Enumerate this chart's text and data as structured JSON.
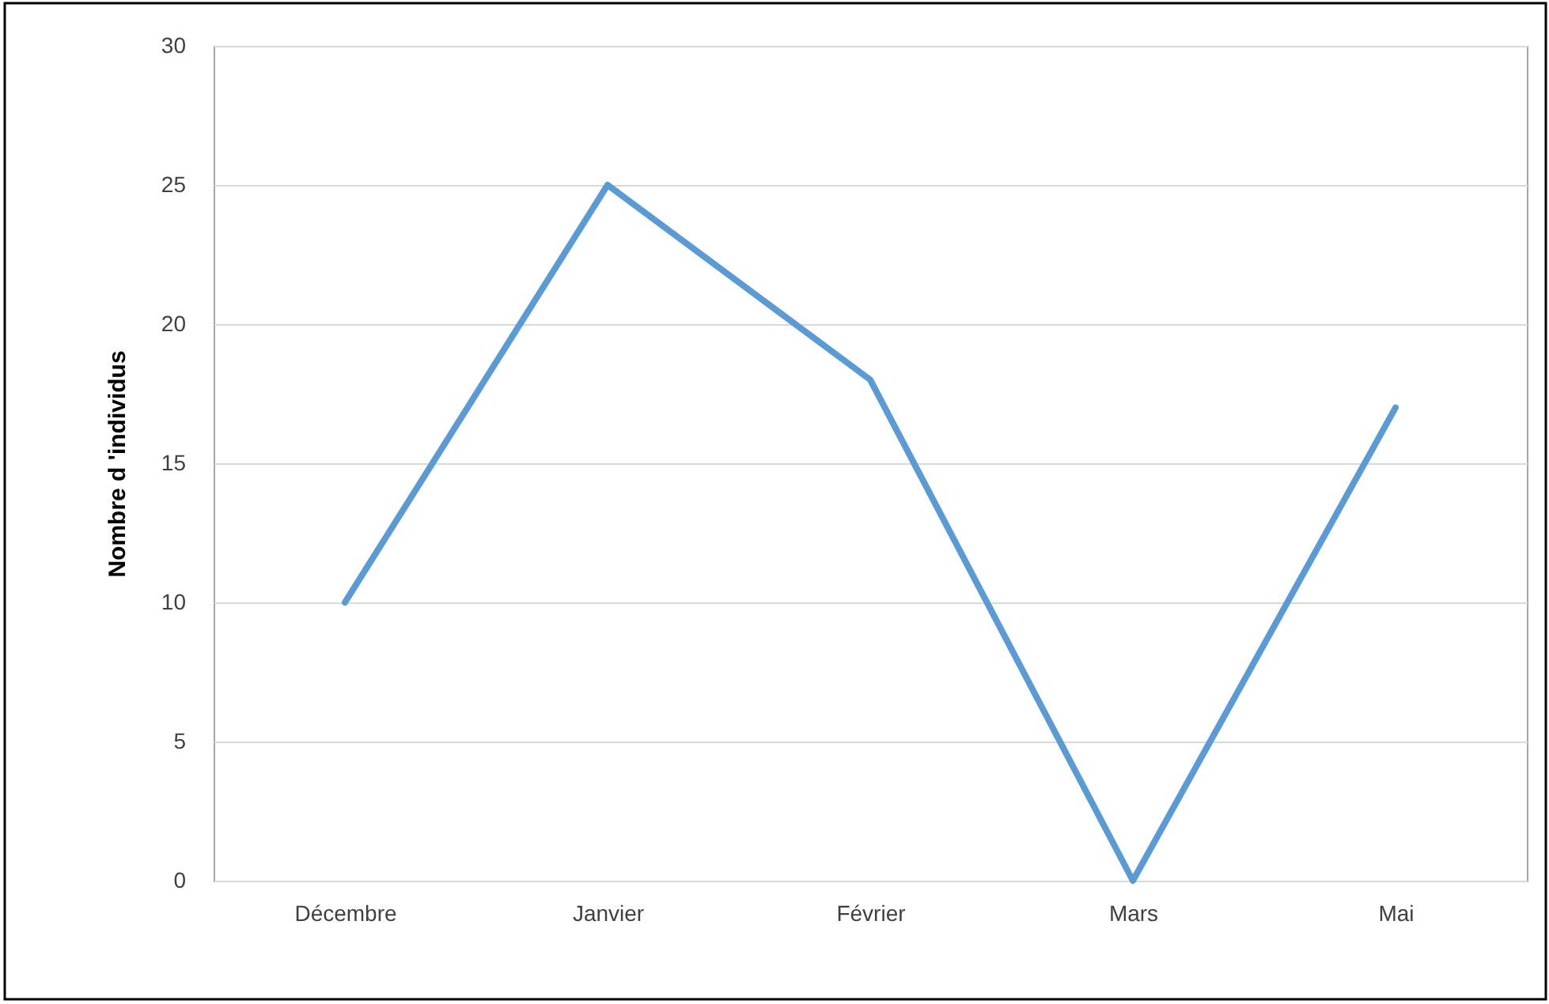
{
  "chart_data": {
    "type": "line",
    "ylabel": "Nombre d 'individus",
    "categories": [
      "Décembre",
      "Janvier",
      "Février",
      "Mars",
      "Mai"
    ],
    "series": [
      {
        "color": "#5b9bd5",
        "values": [
          10,
          25,
          18,
          0,
          17
        ]
      }
    ],
    "ylim": [
      0,
      30
    ],
    "yticks": [
      0,
      5,
      10,
      15,
      20,
      25,
      30
    ],
    "grid": "y",
    "marker": "none",
    "line_style": "solid"
  }
}
